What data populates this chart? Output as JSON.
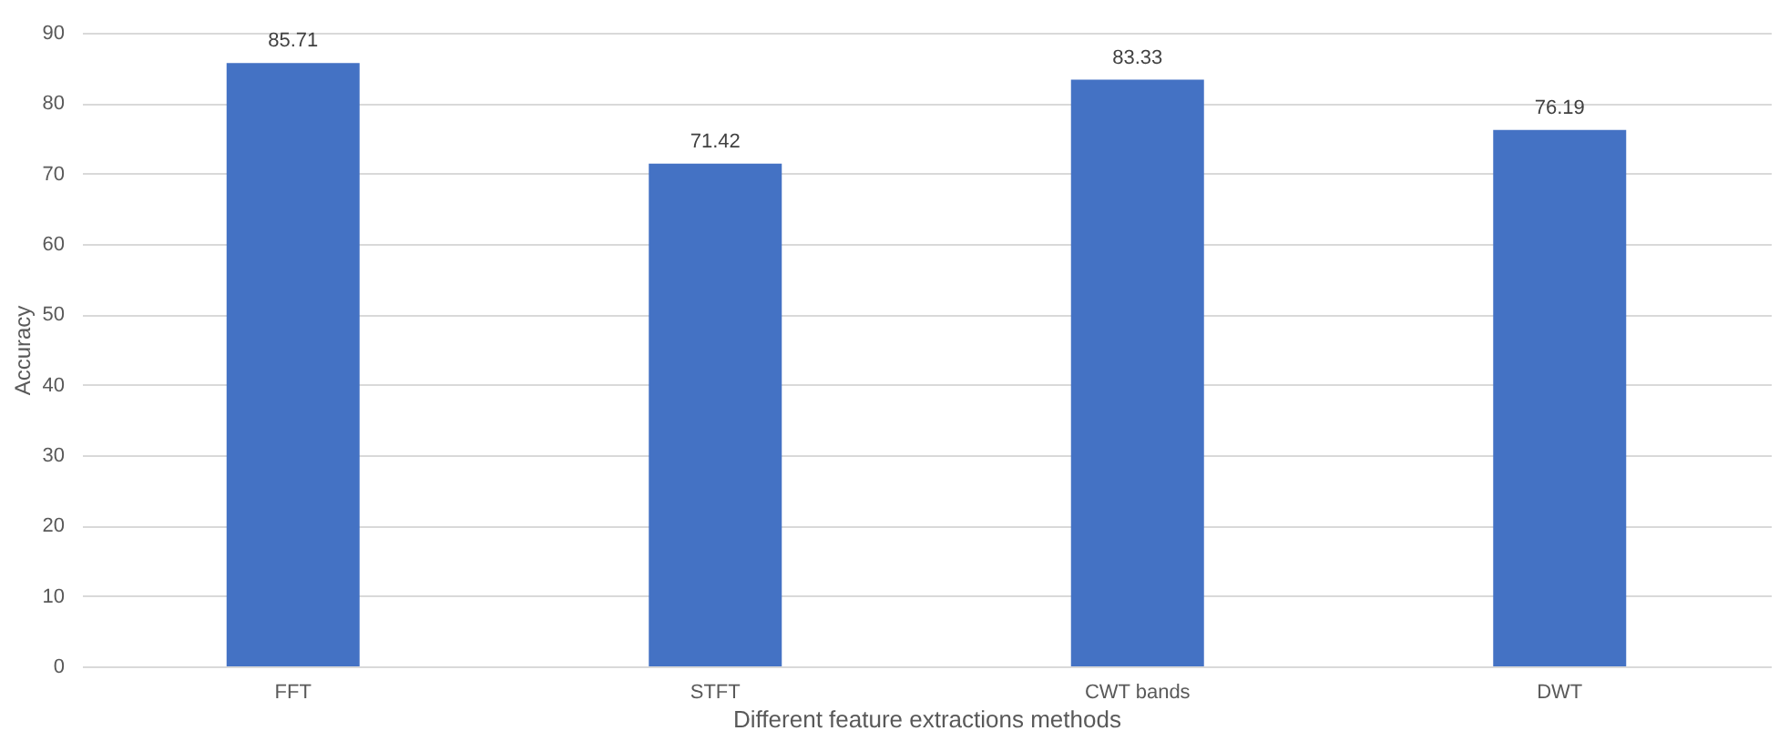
{
  "chart_data": {
    "type": "bar",
    "xlabel": "Different feature extractions methods",
    "ylabel": "Accuracy",
    "categories": [
      "FFT",
      "STFT",
      "CWT bands",
      "DWT"
    ],
    "values": [
      85.71,
      71.42,
      83.33,
      76.19
    ],
    "color": "#4472c4",
    "ylim": [
      0,
      90
    ],
    "yticks": [
      0,
      10,
      20,
      30,
      40,
      50,
      60,
      70,
      80,
      90
    ],
    "grid": "y",
    "data_labels": true
  }
}
